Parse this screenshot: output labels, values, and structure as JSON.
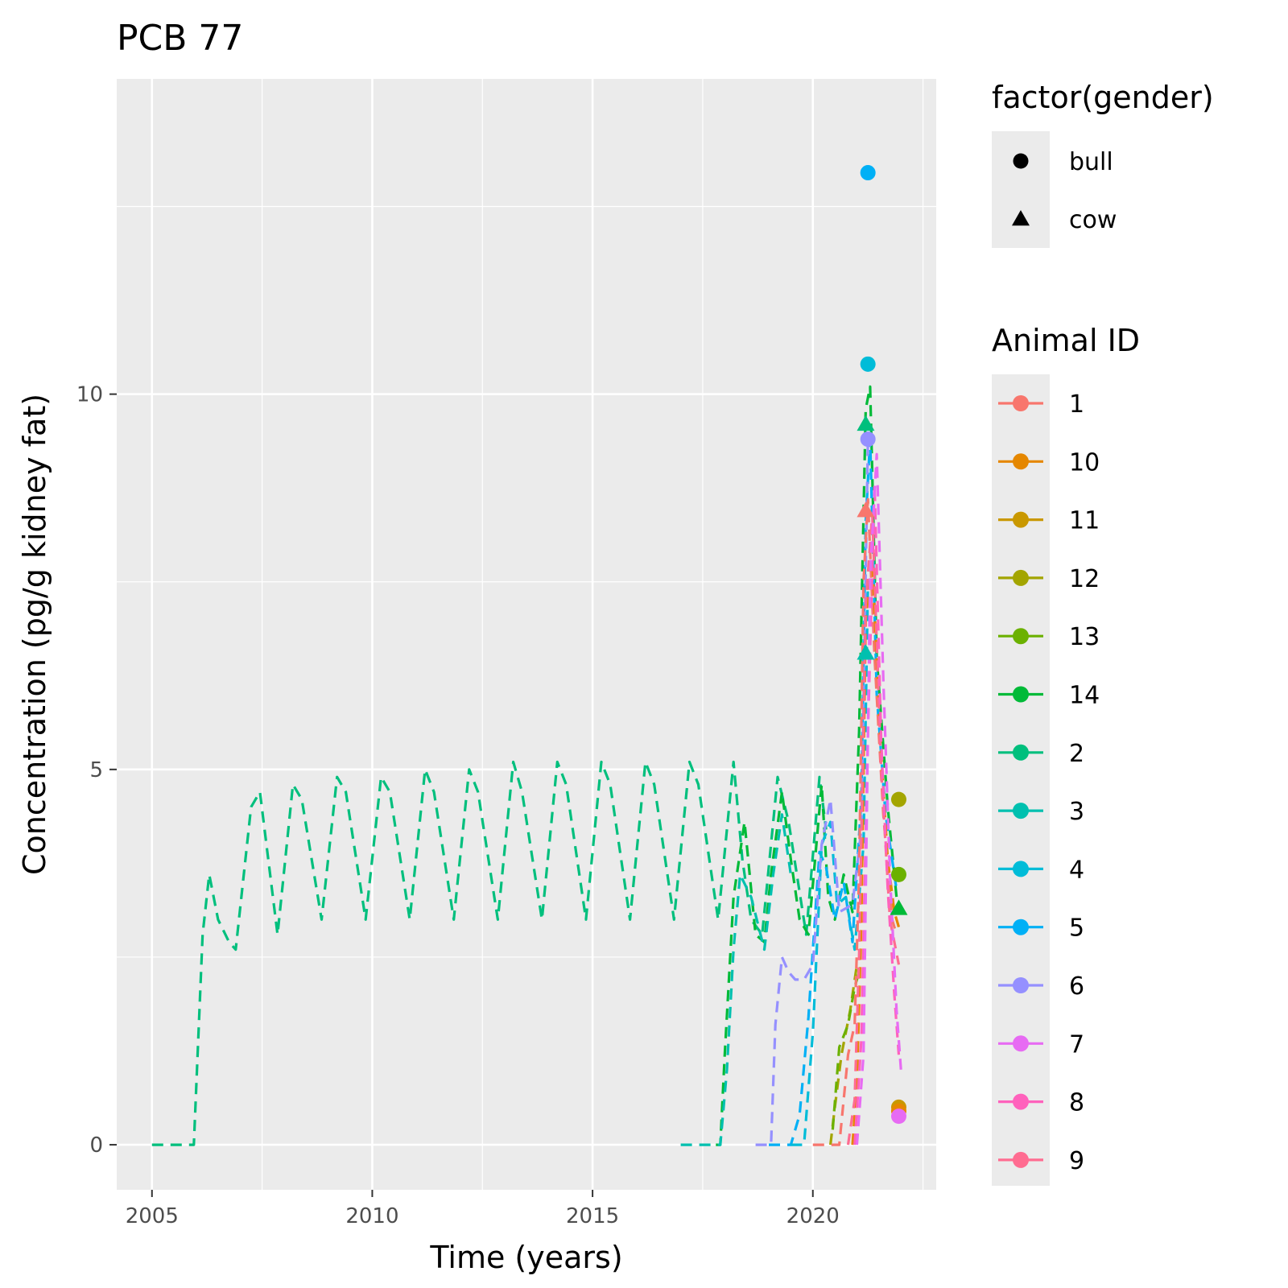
{
  "chart_data": {
    "type": "line",
    "title": "PCB 77",
    "xlabel": "Time (years)",
    "ylabel": "Concentration (pg/g kidney fat)",
    "xlim": [
      2004.2,
      2022.8
    ],
    "ylim": [
      -0.6,
      14.2
    ],
    "x_ticks": [
      2005,
      2010,
      2015,
      2020
    ],
    "y_ticks": [
      0,
      5,
      10
    ],
    "grid": true,
    "legend_position": "right",
    "line_style": "dashed",
    "shape_legend": {
      "title": "factor(gender)",
      "entries": [
        {
          "label": "bull",
          "shape": "circle"
        },
        {
          "label": "cow",
          "shape": "triangle"
        }
      ]
    },
    "color_legend": {
      "title": "Animal ID",
      "entries": [
        {
          "label": "1",
          "color": "#F8766D"
        },
        {
          "label": "10",
          "color": "#E58700"
        },
        {
          "label": "11",
          "color": "#C99800"
        },
        {
          "label": "12",
          "color": "#A3A500"
        },
        {
          "label": "13",
          "color": "#6BB100"
        },
        {
          "label": "14",
          "color": "#00BA38"
        },
        {
          "label": "2",
          "color": "#00BF7D"
        },
        {
          "label": "3",
          "color": "#00C0AF"
        },
        {
          "label": "4",
          "color": "#00BCD8"
        },
        {
          "label": "5",
          "color": "#00B0F6"
        },
        {
          "label": "6",
          "color": "#9590FF"
        },
        {
          "label": "7",
          "color": "#E76BF3"
        },
        {
          "label": "8",
          "color": "#FF62BC"
        },
        {
          "label": "9",
          "color": "#FF6C91"
        }
      ]
    },
    "series": [
      {
        "name": "2",
        "color": "#00BF7D",
        "x": [
          2005.0,
          2005.95,
          2006.15,
          2006.3,
          2006.5,
          2006.75,
          2006.9,
          2007.25,
          2007.45,
          2007.85,
          2008.2,
          2008.4,
          2008.85,
          2009.2,
          2009.4,
          2009.85,
          2010.2,
          2010.4,
          2010.85,
          2011.2,
          2011.4,
          2011.85,
          2012.2,
          2012.4,
          2012.85,
          2013.2,
          2013.4,
          2013.85,
          2014.2,
          2014.4,
          2014.85,
          2015.2,
          2015.4,
          2015.85,
          2016.2,
          2016.4,
          2016.85,
          2017.2,
          2017.4,
          2017.85,
          2018.2,
          2018.4,
          2018.6,
          2018.85,
          2019.2,
          2019.45,
          2019.85,
          2020.15,
          2020.3
        ],
        "y": [
          0,
          0,
          2.8,
          3.6,
          3.0,
          2.7,
          2.6,
          4.5,
          4.7,
          2.8,
          4.8,
          4.6,
          3.0,
          4.9,
          4.7,
          3.0,
          4.9,
          4.7,
          3.0,
          5.0,
          4.7,
          3.0,
          5.0,
          4.7,
          3.0,
          5.1,
          4.7,
          3.0,
          5.1,
          4.8,
          3.0,
          5.1,
          4.8,
          3.0,
          5.1,
          4.8,
          3.0,
          5.1,
          4.8,
          3.0,
          5.1,
          3.8,
          3.0,
          2.8,
          4.9,
          4.3,
          2.8,
          4.9,
          4.2
        ]
      },
      {
        "name": "14",
        "color": "#00BA38",
        "x": [
          2017.8,
          2017.9,
          2018.0,
          2018.2,
          2018.45,
          2018.7,
          2018.9,
          2019.05,
          2019.3,
          2019.5,
          2019.7,
          2019.9,
          2020.05,
          2020.2,
          2020.35,
          2020.5,
          2020.7,
          2020.9,
          2021.05,
          2021.2,
          2021.3,
          2021.45,
          2021.7,
          2021.9
        ],
        "y": [
          0,
          0,
          1.2,
          3.3,
          4.3,
          2.8,
          2.7,
          3.6,
          4.7,
          3.8,
          3.0,
          2.8,
          3.8,
          4.8,
          3.3,
          3.0,
          3.6,
          3.1,
          5.5,
          9.8,
          10.1,
          6.5,
          4.5,
          3.3
        ]
      },
      {
        "name": "3",
        "color": "#00C0AF",
        "x": [
          2017.0,
          2017.6,
          2017.9,
          2018.05,
          2018.2,
          2018.35,
          2018.6,
          2018.9,
          2019.1,
          2019.3,
          2019.5
        ],
        "y": [
          0,
          0,
          0,
          1.0,
          2.6,
          3.6,
          3.3,
          2.6,
          3.6,
          4.4,
          3.6
        ]
      },
      {
        "name": "5",
        "color": "#00B0F6",
        "x": [
          2019.0,
          2019.5,
          2019.7,
          2019.9,
          2020.0,
          2020.15,
          2020.3,
          2020.5,
          2020.7,
          2020.9,
          2021.1,
          2021.2,
          2021.3,
          2021.45,
          2021.65,
          2021.9
        ],
        "y": [
          0,
          0,
          0.4,
          1.7,
          2.6,
          3.9,
          3.7,
          3.0,
          3.5,
          2.7,
          4.6,
          8.3,
          9.4,
          6.0,
          4.4,
          3.4
        ]
      },
      {
        "name": "4",
        "color": "#00BCD8",
        "x": [
          2019.5,
          2019.8,
          2020.0,
          2020.2,
          2020.4,
          2020.55,
          2020.75,
          2020.95,
          2021.15,
          2021.25
        ],
        "y": [
          0,
          0,
          1.5,
          4.0,
          4.3,
          3.2,
          3.3,
          2.6,
          4.0,
          7.5
        ]
      },
      {
        "name": "6",
        "color": "#9590FF",
        "x": [
          2018.7,
          2019.05,
          2019.15,
          2019.3,
          2019.45,
          2019.6,
          2019.8,
          2020.0,
          2020.2,
          2020.4,
          2020.6,
          2020.9,
          2021.1,
          2021.25
        ],
        "y": [
          0,
          0,
          1.6,
          2.5,
          2.3,
          2.2,
          2.2,
          2.4,
          4.0,
          4.6,
          3.1,
          3.2,
          4.2,
          9.4
        ]
      },
      {
        "name": "12",
        "color": "#A3A500",
        "x": [
          2020.4,
          2020.5,
          2020.65,
          2020.85,
          2021.0
        ],
        "y": [
          0,
          0.5,
          1.2,
          1.8,
          2.4
        ]
      },
      {
        "name": "13",
        "color": "#6BB100",
        "x": [
          2020.45,
          2020.6,
          2020.8,
          2020.95,
          2021.05
        ],
        "y": [
          0.2,
          1.3,
          1.6,
          2.1,
          2.3
        ]
      },
      {
        "name": "1",
        "color": "#F8766D",
        "x": [
          2020.0,
          2020.6,
          2020.8,
          2020.95,
          2021.05,
          2021.15,
          2021.25,
          2021.4,
          2021.6,
          2021.8,
          2021.9
        ],
        "y": [
          0,
          0,
          1.2,
          1.6,
          3.6,
          7.5,
          8.6,
          6.5,
          4.4,
          3.0,
          2.8
        ]
      },
      {
        "name": "10",
        "color": "#E58700",
        "x": [
          2020.9,
          2021.0,
          2021.1,
          2021.2,
          2021.35,
          2021.55,
          2021.7,
          2021.85,
          2021.95
        ],
        "y": [
          0,
          0.8,
          3.0,
          7.0,
          7.8,
          5.2,
          3.8,
          3.1,
          2.9
        ]
      },
      {
        "name": "9",
        "color": "#FF6C91",
        "x": [
          2020.8,
          2020.95,
          2021.05,
          2021.2,
          2021.35,
          2021.55,
          2021.75,
          2021.95
        ],
        "y": [
          0,
          0.6,
          2.5,
          7.2,
          8.4,
          5.0,
          3.0,
          2.4
        ]
      },
      {
        "name": "8",
        "color": "#FF62BC",
        "x": [
          2020.95,
          2021.1,
          2021.25,
          2021.4,
          2021.55,
          2021.7,
          2021.85,
          2021.95
        ],
        "y": [
          0,
          1.4,
          5.5,
          8.8,
          5.4,
          3.4,
          2.0,
          1.2
        ]
      },
      {
        "name": "7",
        "color": "#E76BF3",
        "x": [
          2021.0,
          2021.15,
          2021.3,
          2021.45,
          2021.6,
          2021.75,
          2021.9,
          2022.0
        ],
        "y": [
          0,
          1.2,
          7.6,
          9.2,
          6.2,
          3.6,
          1.8,
          1.0
        ]
      }
    ],
    "points": [
      {
        "x": 2021.25,
        "y": 12.95,
        "color": "#00B0F6",
        "shape": "circle"
      },
      {
        "x": 2021.25,
        "y": 10.4,
        "color": "#00BCD8",
        "shape": "circle"
      },
      {
        "x": 2021.2,
        "y": 9.6,
        "color": "#00BF7D",
        "shape": "triangle"
      },
      {
        "x": 2021.25,
        "y": 9.4,
        "color": "#9590FF",
        "shape": "circle"
      },
      {
        "x": 2021.2,
        "y": 8.45,
        "color": "#F8766D",
        "shape": "triangle"
      },
      {
        "x": 2021.2,
        "y": 6.55,
        "color": "#00C0AF",
        "shape": "triangle"
      },
      {
        "x": 2021.95,
        "y": 4.6,
        "color": "#A3A500",
        "shape": "circle"
      },
      {
        "x": 2021.95,
        "y": 3.6,
        "color": "#6BB100",
        "shape": "circle"
      },
      {
        "x": 2021.95,
        "y": 3.15,
        "color": "#00BA38",
        "shape": "triangle"
      },
      {
        "x": 2021.95,
        "y": 0.5,
        "color": "#C99800",
        "shape": "circle"
      },
      {
        "x": 2021.95,
        "y": 0.45,
        "color": "#E58700",
        "shape": "circle"
      },
      {
        "x": 2021.95,
        "y": 0.38,
        "color": "#E76BF3",
        "shape": "circle"
      }
    ]
  }
}
